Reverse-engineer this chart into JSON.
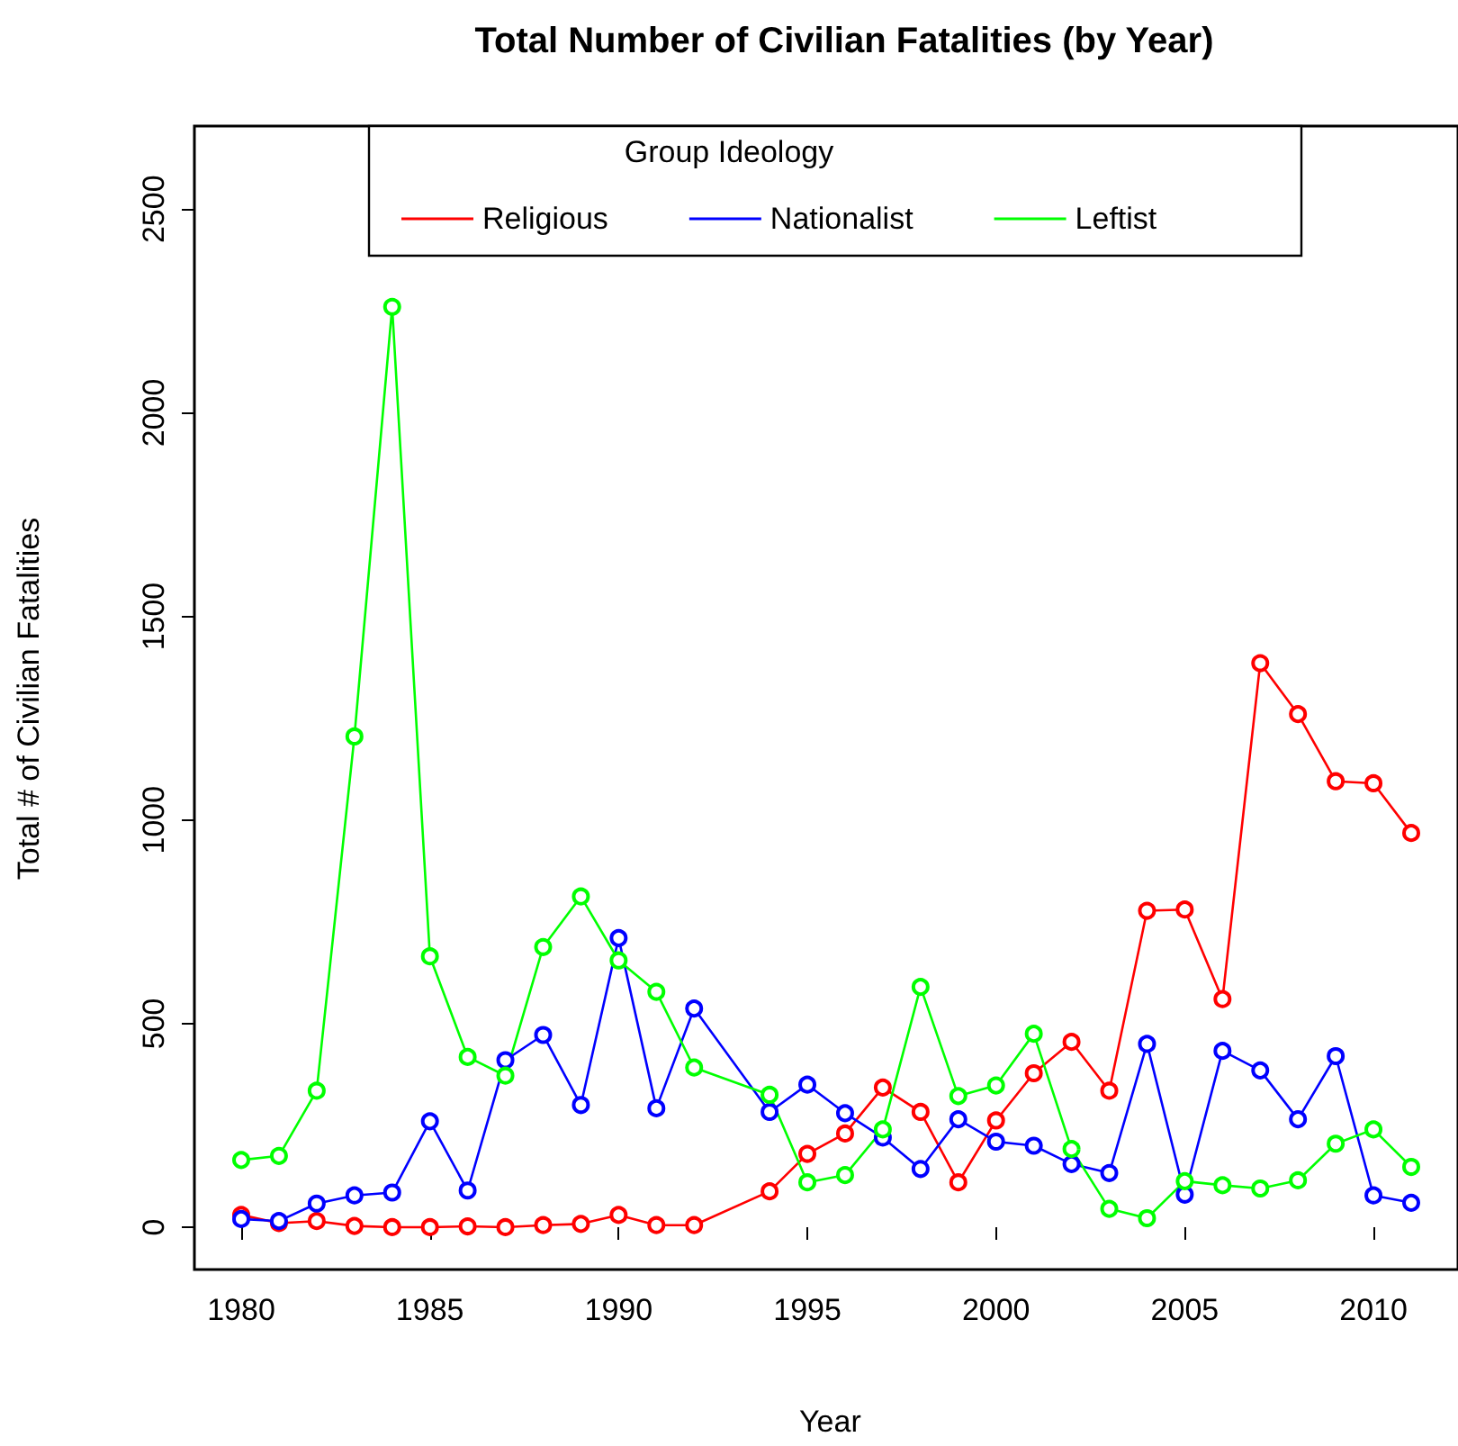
{
  "chart_data": {
    "type": "line",
    "title": "Total Number of Civilian Fatalities (by Year)",
    "xlabel": "Year",
    "ylabel": "Total # of Civilian Fatalities",
    "legend_title": "Group Ideology",
    "legend": "top",
    "marker": "circle",
    "grid": false,
    "x": [
      1980,
      1981,
      1982,
      1983,
      1984,
      1985,
      1986,
      1987,
      1988,
      1989,
      1990,
      1991,
      1992,
      1994,
      1995,
      1996,
      1997,
      1998,
      1999,
      2000,
      2001,
      2002,
      2003,
      2004,
      2005,
      2006,
      2007,
      2008,
      2009,
      2010,
      2011
    ],
    "xlim": [
      1978.76,
      2012.24
    ],
    "xticks": [
      1980,
      1985,
      1990,
      1995,
      2000,
      2005,
      2010
    ],
    "ylim": [
      -104,
      2704
    ],
    "yticks": [
      0,
      500,
      1000,
      1500,
      2000,
      2500
    ],
    "series": [
      {
        "name": "Religious",
        "color": "#ff0000",
        "values": [
          30,
          10,
          15,
          3,
          0,
          0,
          2,
          0,
          5,
          8,
          30,
          5,
          5,
          88,
          180,
          230,
          343,
          283,
          110,
          262,
          378,
          455,
          335,
          777,
          780,
          560,
          1385,
          1260,
          1095,
          1090,
          968
        ]
      },
      {
        "name": "Nationalist",
        "color": "#0000ff",
        "values": [
          20,
          15,
          58,
          78,
          85,
          260,
          90,
          410,
          472,
          300,
          710,
          292,
          537,
          283,
          350,
          280,
          220,
          143,
          265,
          210,
          200,
          155,
          133,
          450,
          80,
          433,
          385,
          265,
          420,
          78,
          60
        ]
      },
      {
        "name": "Leftist",
        "color": "#00ff00",
        "values": [
          165,
          175,
          335,
          1205,
          2260,
          665,
          418,
          372,
          688,
          812,
          655,
          578,
          392,
          325,
          110,
          128,
          240,
          590,
          322,
          348,
          475,
          192,
          45,
          22,
          113,
          103,
          95,
          115,
          205,
          240,
          148
        ]
      }
    ]
  }
}
